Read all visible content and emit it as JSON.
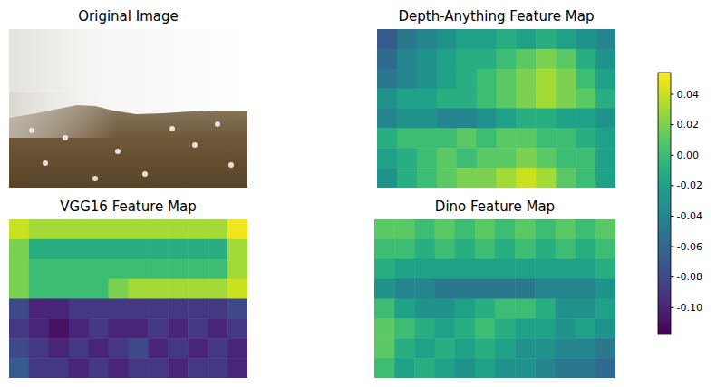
{
  "image_panel": {
    "title": "Original Image"
  },
  "chart_data": [
    {
      "type": "heatmap",
      "title": "Depth-Anything Feature Map",
      "tick_labels": false,
      "cells": [
        [
          -0.07,
          -0.05,
          -0.04,
          -0.03,
          -0.02,
          -0.02,
          -0.01,
          -0.02,
          -0.01,
          -0.02,
          -0.03,
          -0.04
        ],
        [
          -0.06,
          -0.04,
          -0.03,
          -0.02,
          -0.01,
          -0.01,
          0.0,
          0.01,
          0.02,
          0.01,
          -0.01,
          -0.03
        ],
        [
          -0.05,
          -0.04,
          -0.03,
          -0.02,
          -0.01,
          0.0,
          0.01,
          0.02,
          0.03,
          0.02,
          0.0,
          -0.02
        ],
        [
          -0.03,
          -0.02,
          -0.02,
          -0.01,
          -0.01,
          0.0,
          0.01,
          0.02,
          0.03,
          0.02,
          0.01,
          -0.01
        ],
        [
          -0.04,
          -0.03,
          -0.03,
          -0.04,
          -0.04,
          -0.03,
          -0.02,
          -0.01,
          -0.01,
          -0.02,
          -0.02,
          -0.03
        ],
        [
          -0.01,
          0.0,
          0.0,
          0.0,
          0.01,
          0.0,
          0.01,
          0.01,
          0.0,
          0.0,
          -0.01,
          -0.02
        ],
        [
          -0.02,
          -0.01,
          0.0,
          0.01,
          0.0,
          0.01,
          0.01,
          0.02,
          0.01,
          0.0,
          0.0,
          -0.02
        ],
        [
          -0.03,
          -0.01,
          0.0,
          0.01,
          0.02,
          0.02,
          0.03,
          0.04,
          0.03,
          0.01,
          0.0,
          -0.02
        ]
      ]
    },
    {
      "type": "heatmap",
      "title": "VGG16 Feature Map",
      "tick_labels": false,
      "cells": [
        [
          0.04,
          0.03,
          0.03,
          0.03,
          0.03,
          0.03,
          0.03,
          0.03,
          0.03,
          0.03,
          0.03,
          0.05
        ],
        [
          0.02,
          -0.01,
          -0.01,
          -0.01,
          -0.01,
          -0.01,
          -0.01,
          -0.01,
          -0.01,
          -0.01,
          -0.01,
          0.03
        ],
        [
          0.02,
          0.0,
          0.0,
          0.0,
          0.0,
          0.0,
          0.0,
          0.0,
          0.0,
          0.0,
          0.0,
          0.03
        ],
        [
          0.02,
          0.0,
          0.0,
          0.0,
          0.0,
          0.02,
          0.03,
          0.03,
          0.03,
          0.03,
          0.03,
          0.04
        ],
        [
          -0.08,
          -0.1,
          -0.1,
          -0.09,
          -0.09,
          -0.09,
          -0.09,
          -0.09,
          -0.09,
          -0.09,
          -0.09,
          -0.08
        ],
        [
          -0.09,
          -0.1,
          -0.11,
          -0.1,
          -0.09,
          -0.1,
          -0.1,
          -0.09,
          -0.1,
          -0.09,
          -0.1,
          -0.09
        ],
        [
          -0.08,
          -0.09,
          -0.1,
          -0.09,
          -0.1,
          -0.09,
          -0.08,
          -0.1,
          -0.09,
          -0.1,
          -0.09,
          -0.1
        ],
        [
          -0.07,
          -0.09,
          -0.09,
          -0.1,
          -0.09,
          -0.1,
          -0.09,
          -0.09,
          -0.1,
          -0.09,
          -0.09,
          -0.1
        ]
      ]
    },
    {
      "type": "heatmap",
      "title": "Dino Feature Map",
      "tick_labels": false,
      "cells": [
        [
          0.01,
          0.01,
          0.0,
          0.01,
          0.0,
          0.01,
          0.0,
          0.01,
          0.0,
          0.01,
          0.0,
          0.01
        ],
        [
          0.0,
          0.0,
          -0.01,
          0.0,
          -0.01,
          0.0,
          -0.01,
          0.0,
          -0.01,
          0.0,
          -0.01,
          0.0
        ],
        [
          -0.01,
          -0.02,
          -0.02,
          -0.02,
          -0.02,
          -0.02,
          -0.02,
          -0.02,
          -0.02,
          -0.02,
          -0.02,
          -0.01
        ],
        [
          -0.03,
          -0.04,
          -0.04,
          -0.05,
          -0.05,
          -0.05,
          -0.05,
          -0.05,
          -0.04,
          -0.04,
          -0.04,
          -0.03
        ],
        [
          0.0,
          -0.02,
          -0.03,
          -0.03,
          -0.02,
          -0.01,
          0.0,
          0.0,
          -0.01,
          -0.03,
          -0.03,
          -0.02
        ],
        [
          0.01,
          0.0,
          -0.01,
          -0.02,
          -0.01,
          0.0,
          -0.01,
          -0.02,
          -0.02,
          -0.03,
          -0.02,
          -0.03
        ],
        [
          0.01,
          -0.01,
          -0.02,
          -0.01,
          -0.02,
          -0.01,
          -0.02,
          -0.03,
          -0.03,
          -0.04,
          -0.04,
          -0.05
        ],
        [
          0.0,
          -0.02,
          -0.01,
          -0.02,
          -0.03,
          -0.02,
          -0.03,
          -0.03,
          -0.04,
          -0.05,
          -0.05,
          -0.06
        ]
      ]
    }
  ],
  "colorbar": {
    "range": [
      -0.118,
      0.054
    ],
    "ticks": [
      {
        "value": -0.1,
        "label": "-0.10"
      },
      -0.08,
      -0.06,
      -0.04,
      -0.02,
      {
        "value": 0,
        "label": "0.00"
      },
      0.02,
      0.04
    ]
  }
}
